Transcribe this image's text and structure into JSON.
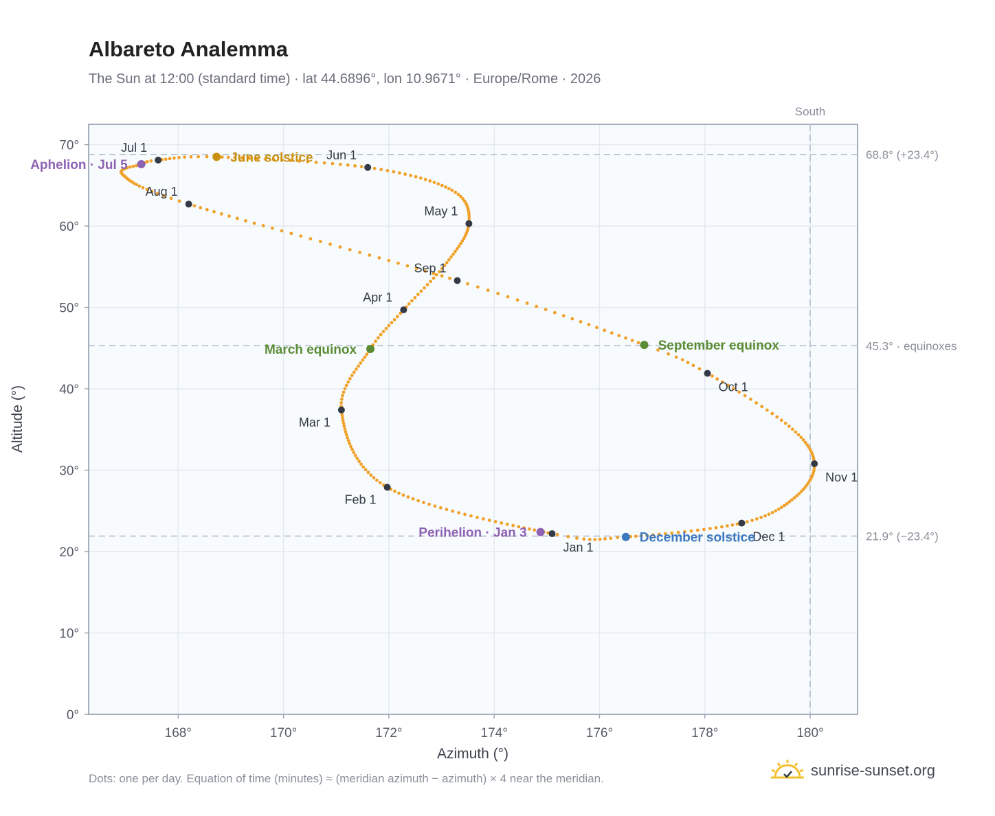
{
  "header": {
    "title": "Albareto Analemma",
    "subtitle": "The Sun at 12:00 (standard time) · lat 44.6896°, lon 10.9671° · Europe/Rome · 2026"
  },
  "footer": {
    "note": "Dots: one per day. Equation of time (minutes) ≈ (meridian azimuth − azimuth) × 4 near the meridian.",
    "brand": "sunrise-sunset.org"
  },
  "colors": {
    "path": "#f0a12a",
    "month_marker": "#333a45",
    "june_solstice": "#c9900f",
    "equinox": "#5b8c35",
    "december_solstice": "#3b78c0",
    "apsis": "#8e62b3",
    "reference_line": "#b6c4d2"
  },
  "chart_data": {
    "type": "scatter",
    "xlabel": "Azimuth (°)",
    "ylabel": "Altitude (°)",
    "xlim": [
      166.3,
      180.9
    ],
    "ylim": [
      0,
      72.5
    ],
    "xticks": [
      168,
      170,
      172,
      174,
      176,
      178,
      180
    ],
    "xtick_labels": [
      "168°",
      "170°",
      "172°",
      "174°",
      "176°",
      "178°",
      "180°"
    ],
    "yticks": [
      0,
      10,
      20,
      30,
      40,
      50,
      60,
      70
    ],
    "ytick_labels": [
      "0°",
      "10°",
      "20°",
      "30°",
      "40°",
      "50°",
      "60°",
      "70°"
    ],
    "grid": true,
    "series": [
      {
        "points_per_day": 365,
        "path_nodes": [
          {
            "day": 1,
            "az": 175.1,
            "alt": 22.2
          },
          {
            "day": 32,
            "az": 171.97,
            "alt": 27.9
          },
          {
            "day": 60,
            "az": 171.1,
            "alt": 37.4
          },
          {
            "day": 79,
            "az": 171.65,
            "alt": 44.9
          },
          {
            "day": 91,
            "az": 172.28,
            "alt": 49.7
          },
          {
            "day": 106,
            "az": 173.1,
            "alt": 55.5
          },
          {
            "day": 121,
            "az": 173.52,
            "alt": 60.3
          },
          {
            "day": 135,
            "az": 173.2,
            "alt": 64.4
          },
          {
            "day": 152,
            "az": 171.6,
            "alt": 67.2
          },
          {
            "day": 172,
            "az": 168.73,
            "alt": 68.5
          },
          {
            "day": 182,
            "az": 167.62,
            "alt": 68.1
          },
          {
            "day": 186,
            "az": 167.3,
            "alt": 67.6
          },
          {
            "day": 196,
            "az": 166.95,
            "alt": 66.3
          },
          {
            "day": 213,
            "az": 168.2,
            "alt": 62.7
          },
          {
            "day": 244,
            "az": 173.3,
            "alt": 53.3
          },
          {
            "day": 266,
            "az": 176.85,
            "alt": 45.4
          },
          {
            "day": 274,
            "az": 178.05,
            "alt": 41.9
          },
          {
            "day": 290,
            "az": 179.6,
            "alt": 35.4
          },
          {
            "day": 305,
            "az": 180.08,
            "alt": 30.8
          },
          {
            "day": 320,
            "az": 179.7,
            "alt": 26.6
          },
          {
            "day": 335,
            "az": 178.7,
            "alt": 23.5
          },
          {
            "day": 355,
            "az": 176.5,
            "alt": 21.8
          },
          {
            "day": 365,
            "az": 175.2,
            "alt": 22.1
          }
        ]
      }
    ],
    "month_markers": [
      {
        "label": "Jan 1",
        "az": 175.1,
        "alt": 22.2,
        "label_side": "below-right"
      },
      {
        "label": "Feb 1",
        "az": 171.97,
        "alt": 27.9,
        "label_side": "below-left"
      },
      {
        "label": "Mar 1",
        "az": 171.1,
        "alt": 37.4,
        "label_side": "below-left"
      },
      {
        "label": "Apr 1",
        "az": 172.28,
        "alt": 49.7,
        "label_side": "above-left"
      },
      {
        "label": "May 1",
        "az": 173.52,
        "alt": 60.3,
        "label_side": "above-left"
      },
      {
        "label": "Jun 1",
        "az": 171.6,
        "alt": 67.2,
        "label_side": "above-left"
      },
      {
        "label": "Jul 1",
        "az": 167.62,
        "alt": 68.1,
        "label_side": "above-left"
      },
      {
        "label": "Aug 1",
        "az": 168.2,
        "alt": 62.7,
        "label_side": "above-left"
      },
      {
        "label": "Sep 1",
        "az": 173.3,
        "alt": 53.3,
        "label_side": "above-left"
      },
      {
        "label": "Oct 1",
        "az": 178.05,
        "alt": 41.9,
        "label_side": "below-right"
      },
      {
        "label": "Nov 1",
        "az": 180.08,
        "alt": 30.8,
        "label_side": "below-right"
      },
      {
        "label": "Dec 1",
        "az": 178.7,
        "alt": 23.5,
        "label_side": "below-right"
      }
    ],
    "events": [
      {
        "label": "June solstice",
        "az": 168.73,
        "alt": 68.5,
        "color_key": "june_solstice",
        "label_side": "right"
      },
      {
        "label": "March equinox",
        "az": 171.65,
        "alt": 44.9,
        "color_key": "equinox",
        "label_side": "left"
      },
      {
        "label": "September equinox",
        "az": 176.85,
        "alt": 45.4,
        "color_key": "equinox",
        "label_side": "right"
      },
      {
        "label": "December solstice",
        "az": 176.5,
        "alt": 21.8,
        "color_key": "december_solstice",
        "label_side": "right"
      },
      {
        "label": "Aphelion · Jul 5",
        "az": 167.3,
        "alt": 67.6,
        "color_key": "apsis",
        "label_side": "left"
      },
      {
        "label": "Perihelion · Jan 3",
        "az": 174.88,
        "alt": 22.4,
        "color_key": "apsis",
        "label_side": "left"
      }
    ],
    "reference_lines": [
      {
        "orientation": "horizontal",
        "value": 68.8,
        "label": "68.8° (+23.4°)"
      },
      {
        "orientation": "horizontal",
        "value": 45.3,
        "label": "45.3° · equinoxes"
      },
      {
        "orientation": "horizontal",
        "value": 21.9,
        "label": "21.9° (−23.4°)"
      },
      {
        "orientation": "vertical",
        "value": 180,
        "label": "South"
      }
    ]
  }
}
